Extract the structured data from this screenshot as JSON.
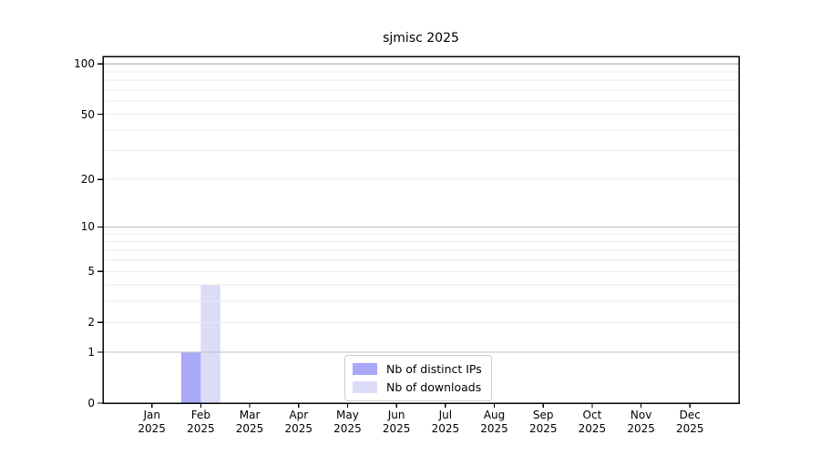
{
  "chart_data": {
    "type": "bar",
    "title": "sjmisc 2025",
    "x_tick_months": [
      "Jan",
      "Feb",
      "Mar",
      "Apr",
      "May",
      "Jun",
      "Jul",
      "Aug",
      "Sep",
      "Oct",
      "Nov",
      "Dec"
    ],
    "x_tick_year": "2025",
    "series": [
      {
        "name": "Nb of distinct IPs",
        "color": "#a9a9f8",
        "values": [
          0,
          1,
          0,
          0,
          0,
          0,
          0,
          0,
          0,
          0,
          0,
          0
        ]
      },
      {
        "name": "Nb of downloads",
        "color": "#dcdcf8",
        "values": [
          0,
          4,
          0,
          0,
          0,
          0,
          0,
          0,
          0,
          0,
          0,
          0
        ]
      }
    ],
    "yscale": "log1p",
    "ylim": [
      0,
      111
    ],
    "ytick_values": [
      0,
      1,
      2,
      5,
      10,
      20,
      50,
      100
    ],
    "ytick_labels": [
      "0",
      "1",
      "2",
      "5",
      "10",
      "20",
      "50",
      "100"
    ],
    "decade_gridlines": [
      1,
      10,
      100
    ],
    "minor_gridlines": [
      2,
      3,
      4,
      5,
      6,
      7,
      8,
      9,
      20,
      30,
      40,
      50,
      60,
      70,
      80,
      90
    ],
    "legend_position": "lower center",
    "grid": true,
    "colors": {
      "decade_grid": "#c0c0c0",
      "minor_grid": "#eaeaea",
      "axis": "#000000",
      "legend_border": "#cccccc",
      "background": "#ffffff"
    }
  }
}
